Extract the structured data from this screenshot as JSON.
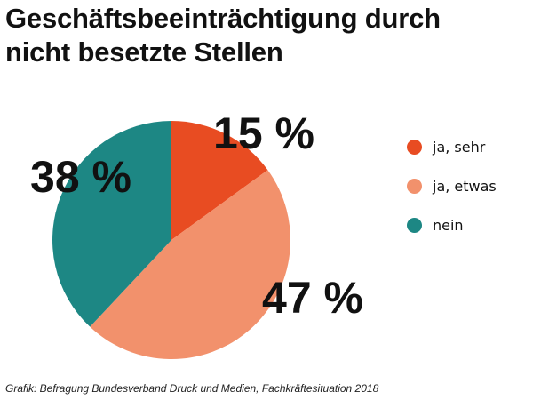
{
  "title": {
    "line1": "Geschäftsbeeinträchtigung durch",
    "line2": "nicht besetzte Stellen"
  },
  "chart_data": {
    "type": "pie",
    "categories": [
      "ja, sehr",
      "ja, etwas",
      "nein"
    ],
    "values": [
      15,
      47,
      38
    ],
    "unit": "%",
    "data_labels": [
      "15 %",
      "47 %",
      "38 %"
    ],
    "colors": [
      "#e84c22",
      "#f2916c",
      "#1d8784"
    ],
    "start_angle": "12 o'clock",
    "direction": "clockwise",
    "legend_position": "right"
  },
  "legend": [
    {
      "label": "ja, sehr",
      "color": "#e84c22"
    },
    {
      "label": "ja, etwas",
      "color": "#f2916c"
    },
    {
      "label": "nein",
      "color": "#1d8784"
    }
  ],
  "source": "Grafik: Befragung Bundesverband Druck und Medien, Fachkräftesituation 2018"
}
